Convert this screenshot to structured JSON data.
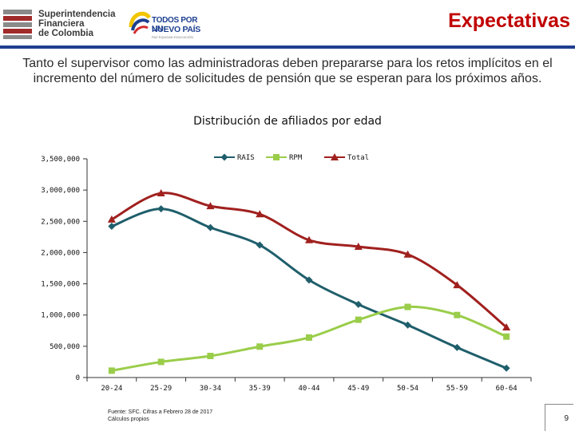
{
  "header": {
    "sfc_logo_lines": [
      "Superintendencia",
      "Financiera",
      "de Colombia"
    ],
    "gov_logo_lines": [
      "TODOS POR UN",
      "NUEVO PAÍS"
    ],
    "gov_logo_tagline": "PAZ EQUIDAD EDUCACIÓN",
    "page_title": "Expectativas"
  },
  "intro_text": "Tanto el supervisor como las administradoras deben prepararse para los retos implícitos en el incremento del número de solicitudes de pensión que se esperan para los próximos años.",
  "chart_data": {
    "type": "line",
    "title": "Distribución de afiliados por edad",
    "categories": [
      "20-24",
      "25-29",
      "30-34",
      "35-39",
      "40-44",
      "45-49",
      "50-54",
      "55-59",
      "60-64"
    ],
    "series": [
      {
        "name": "RAIS",
        "color": "#1f5e6b",
        "marker": "diamond",
        "values": [
          2420000,
          2700000,
          2400000,
          2120000,
          1560000,
          1170000,
          840000,
          480000,
          150000
        ]
      },
      {
        "name": "RPM",
        "color": "#9acd4a",
        "marker": "square",
        "values": [
          110000,
          250000,
          345000,
          495000,
          640000,
          925000,
          1130000,
          1000000,
          655000
        ]
      },
      {
        "name": "Total",
        "color": "#a0201e",
        "marker": "triangle",
        "values": [
          2530000,
          2950000,
          2745000,
          2615000,
          2200000,
          2095000,
          1970000,
          1480000,
          805000
        ]
      }
    ],
    "y_ticks": [
      0,
      500000,
      1000000,
      1500000,
      2000000,
      2500000,
      3000000,
      3500000
    ],
    "y_tick_labels": [
      "0",
      "500,000",
      "1,000,000",
      "1,500,000",
      "2,000,000",
      "2,500,000",
      "3,000,000",
      "3,500,000"
    ],
    "ylim": [
      0,
      3500000
    ],
    "xlabel": "",
    "ylabel": "",
    "legend_position": "top-right"
  },
  "footer": {
    "source_line1": "Fuente: SFC. Cifras a Febrero 28 de 2017",
    "source_line2": "Cálculos propios",
    "page_number": "9"
  }
}
